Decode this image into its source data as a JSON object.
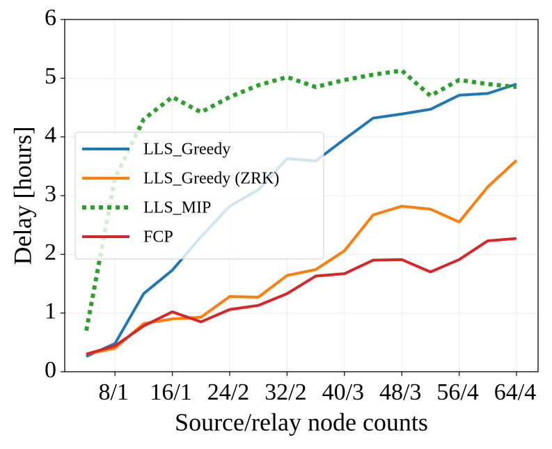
{
  "chart_data": {
    "type": "line",
    "xlabel": "Source/relay node counts",
    "ylabel": "Delay [hours]",
    "categories": [
      null,
      "8/1",
      null,
      "16/1",
      null,
      "24/2",
      null,
      "32/2",
      null,
      "40/3",
      null,
      "48/3",
      null,
      "56/4",
      null,
      "64/4"
    ],
    "ylim": [
      0,
      6
    ],
    "yticks": [
      0,
      1,
      2,
      3,
      4,
      5,
      6
    ],
    "grid": true,
    "legend": "center left",
    "series": [
      {
        "name": "LLS_Greedy",
        "color": "#1f77b4",
        "style": "solid",
        "values": [
          0.26,
          0.48,
          1.33,
          1.73,
          2.3,
          2.82,
          3.1,
          3.63,
          3.59,
          3.96,
          4.32,
          4.39,
          4.47,
          4.71,
          4.74,
          4.9
        ]
      },
      {
        "name": "LLS_Greedy (ZRK)",
        "color": "#ff7f0e",
        "style": "solid",
        "values": [
          0.3,
          0.4,
          0.82,
          0.9,
          0.93,
          1.28,
          1.27,
          1.64,
          1.74,
          2.06,
          2.67,
          2.82,
          2.77,
          2.55,
          3.15,
          3.6
        ]
      },
      {
        "name": "LLS_MIP",
        "color": "#2ca02c",
        "style": "dotted",
        "values": [
          0.7,
          3.3,
          4.3,
          4.68,
          4.42,
          4.68,
          4.88,
          5.02,
          4.85,
          4.97,
          5.06,
          5.13,
          4.7,
          4.97,
          4.9,
          4.85
        ]
      },
      {
        "name": "FCP",
        "color": "#d62728",
        "style": "solid",
        "values": [
          0.3,
          0.44,
          0.78,
          1.02,
          0.85,
          1.06,
          1.13,
          1.33,
          1.63,
          1.67,
          1.9,
          1.91,
          1.7,
          1.91,
          2.23,
          2.27
        ]
      }
    ]
  }
}
